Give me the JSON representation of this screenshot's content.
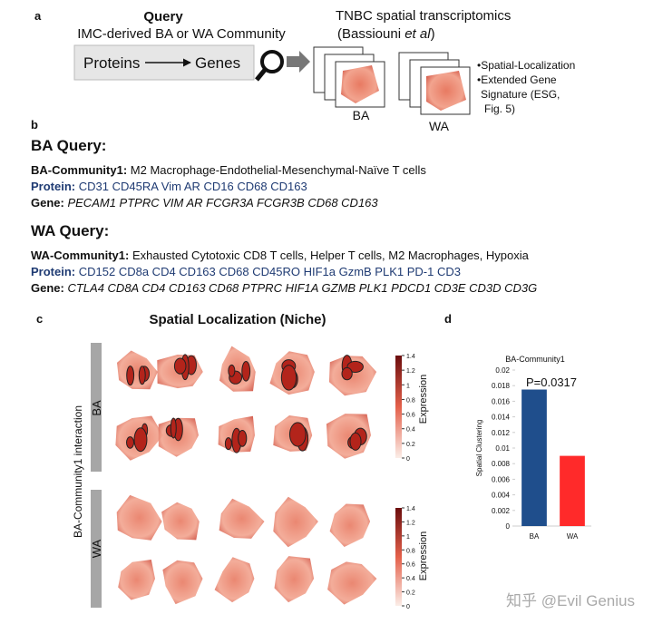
{
  "panel_a": {
    "letter": "a",
    "query_title": "Query",
    "query_subtitle": "IMC-derived BA or WA Community",
    "from": "Proteins",
    "to": "Genes",
    "dataset_title": "TNBC spatial transcriptomics",
    "dataset_source": [
      "(Bassiouni ",
      "et al",
      ")"
    ],
    "group_ba": "BA",
    "group_wa": "WA",
    "bullets": [
      "•Spatial-Localization",
      "•Extended Gene",
      "Signature (ESG,",
      "Fig. 5)"
    ]
  },
  "panel_b": {
    "letter": "b",
    "ba": {
      "heading": "BA Query:",
      "community_label": "BA-Community1:",
      "community": "M2 Macrophage-Endothelial-Mesenchymal-Naïve T cells",
      "protein_label": "Protein:",
      "proteins": "CD31 CD45RA Vim AR CD16 CD68 CD163",
      "gene_label": "Gene:",
      "genes": "PECAM1 PTPRC VIM AR FCGR3A FCGR3B CD68 CD163"
    },
    "wa": {
      "heading": "WA Query:",
      "community_label": "WA-Community1:",
      "community": "Exhausted Cytotoxic CD8 T cells, Helper T cells, M2 Macrophages, Hypoxia",
      "protein_label": "Protein:",
      "proteins": "CD152 CD8a CD4 CD163 CD68 CD45RO HIF1a GzmB PLK1 PD-1 CD3",
      "gene_label": "Gene:",
      "genes": "CTLA4 CD8A CD4 CD163 CD68 PTPRC HIF1A GZMB PLK1 PDCD1 CD3E CD3D CD3G"
    }
  },
  "panel_c": {
    "letter": "c",
    "title": "Spatial Localization (Niche)",
    "y_label": "BA-Community1 interaction",
    "row_ba": "BA",
    "row_wa": "WA",
    "colorbar": {
      "label": "Expression",
      "lim": [
        0,
        1.4
      ],
      "ticks": [
        0,
        0.2,
        0.4,
        0.6,
        0.8,
        1,
        1.2,
        1.4
      ]
    }
  },
  "chart_data": {
    "letter": "d",
    "type": "bar",
    "title": "BA-Community1",
    "y_label": "Spatial Clustering",
    "annotation": "P=0.0317",
    "categories": [
      "BA",
      "WA"
    ],
    "series": [
      {
        "name": "Spatial Clustering",
        "values": [
          0.0175,
          0.009
        ]
      }
    ],
    "colors": [
      "#1f4e8c",
      "#ff2a2a"
    ],
    "ylim": [
      0,
      0.02
    ],
    "yticks": [
      0,
      0.002,
      0.004,
      0.006,
      0.008,
      0.01,
      0.012,
      0.014,
      0.016,
      0.018,
      0.02
    ]
  },
  "watermark": "知乎 @Evil Genius"
}
